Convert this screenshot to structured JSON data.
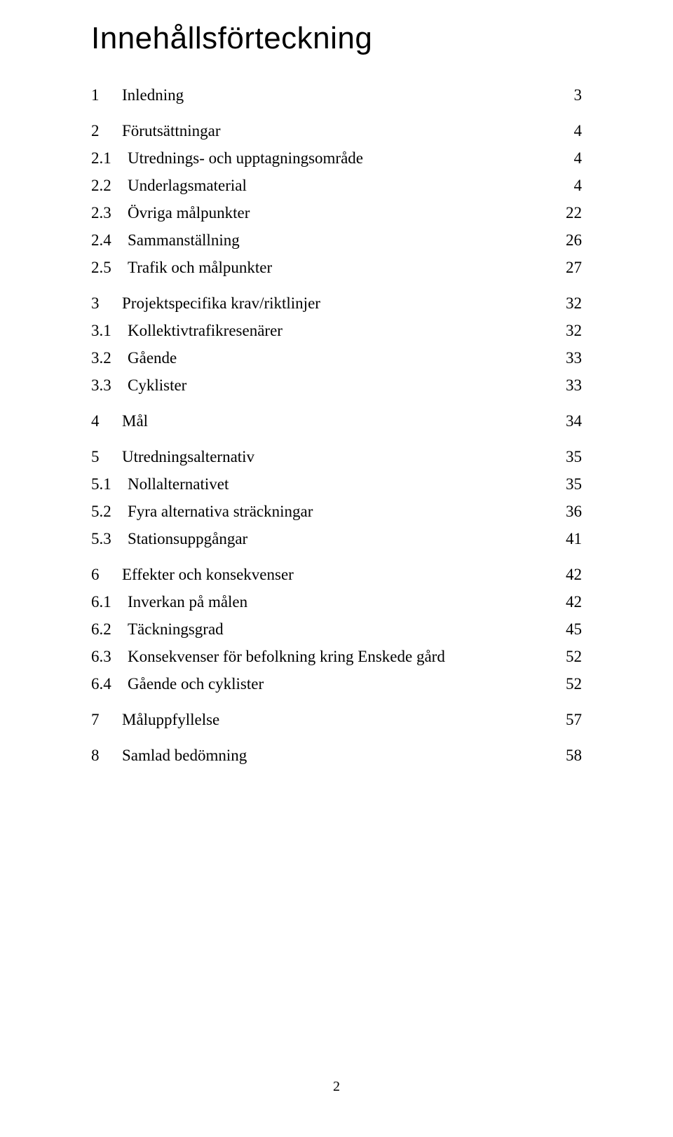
{
  "title": "Innehållsförteckning",
  "page_number": "2",
  "typography": {
    "title_fontsize_pt": 33,
    "body_fontsize_pt": 17,
    "title_font": "sans-serif",
    "body_font": "serif",
    "text_color": "#000000",
    "background_color": "#ffffff"
  },
  "toc": [
    {
      "level": 1,
      "num": "1",
      "label": "Inledning",
      "page": "3"
    },
    {
      "level": 1,
      "num": "2",
      "label": "Förutsättningar",
      "page": "4"
    },
    {
      "level": 2,
      "num": "2.1",
      "label": "Utrednings- och upptagningsområde",
      "page": "4"
    },
    {
      "level": 2,
      "num": "2.2",
      "label": "Underlagsmaterial",
      "page": "4"
    },
    {
      "level": 2,
      "num": "2.3",
      "label": "Övriga målpunkter",
      "page": "22"
    },
    {
      "level": 2,
      "num": "2.4",
      "label": "Sammanställning",
      "page": "26"
    },
    {
      "level": 2,
      "num": "2.5",
      "label": "Trafik och målpunkter",
      "page": "27"
    },
    {
      "level": 1,
      "num": "3",
      "label": "Projektspecifika krav/riktlinjer",
      "page": "32"
    },
    {
      "level": 2,
      "num": "3.1",
      "label": "Kollektivtrafikresenärer",
      "page": "32"
    },
    {
      "level": 2,
      "num": "3.2",
      "label": "Gående",
      "page": "33"
    },
    {
      "level": 2,
      "num": "3.3",
      "label": "Cyklister",
      "page": "33"
    },
    {
      "level": 1,
      "num": "4",
      "label": "Mål",
      "page": "34"
    },
    {
      "level": 1,
      "num": "5",
      "label": "Utredningsalternativ",
      "page": "35"
    },
    {
      "level": 2,
      "num": "5.1",
      "label": "Nollalternativet",
      "page": "35"
    },
    {
      "level": 2,
      "num": "5.2",
      "label": "Fyra alternativa sträckningar",
      "page": "36"
    },
    {
      "level": 2,
      "num": "5.3",
      "label": "Stationsuppgångar",
      "page": "41"
    },
    {
      "level": 1,
      "num": "6",
      "label": "Effekter och konsekvenser",
      "page": "42"
    },
    {
      "level": 2,
      "num": "6.1",
      "label": "Inverkan på målen",
      "page": "42"
    },
    {
      "level": 2,
      "num": "6.2",
      "label": "Täckningsgrad",
      "page": "45"
    },
    {
      "level": 2,
      "num": "6.3",
      "label": "Konsekvenser för befolkning kring Enskede gård",
      "page": "52"
    },
    {
      "level": 2,
      "num": "6.4",
      "label": "Gående och cyklister",
      "page": "52"
    },
    {
      "level": 1,
      "num": "7",
      "label": "Måluppfyllelse",
      "page": "57"
    },
    {
      "level": 1,
      "num": "8",
      "label": "Samlad bedömning",
      "page": "58"
    }
  ]
}
